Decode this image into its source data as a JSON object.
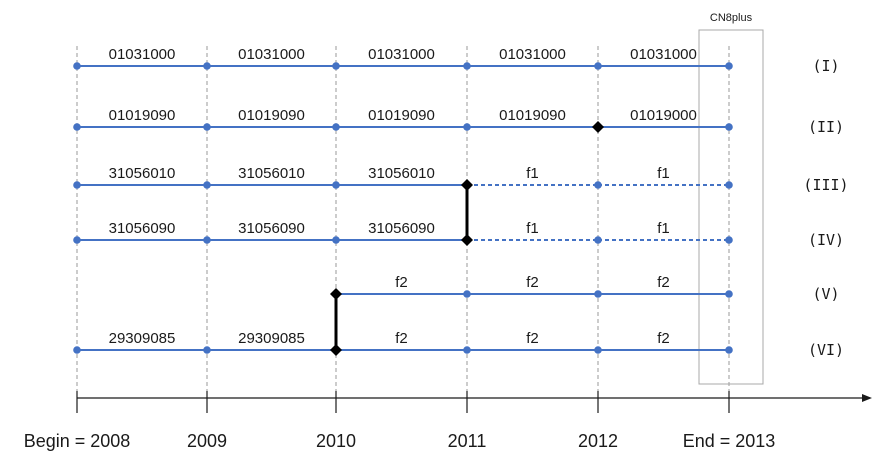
{
  "box_label": "CN8plus",
  "years": [
    {
      "label": "Begin = 2008"
    },
    {
      "label": "2009"
    },
    {
      "label": "2010"
    },
    {
      "label": "2011"
    },
    {
      "label": "2012"
    },
    {
      "label": "End = 2013"
    }
  ],
  "rows": [
    {
      "label": "(I)",
      "start": 0,
      "segments": [
        {
          "label": "01031000",
          "style": "solid"
        },
        {
          "label": "01031000",
          "style": "solid"
        },
        {
          "label": "01031000",
          "style": "solid"
        },
        {
          "label": "01031000",
          "style": "solid"
        },
        {
          "label": "01031000",
          "style": "solid"
        }
      ],
      "diamonds": []
    },
    {
      "label": "(II)",
      "start": 0,
      "segments": [
        {
          "label": "01019090",
          "style": "solid"
        },
        {
          "label": "01019090",
          "style": "solid"
        },
        {
          "label": "01019090",
          "style": "solid"
        },
        {
          "label": "01019090",
          "style": "solid"
        },
        {
          "label": "01019000",
          "style": "solid"
        }
      ],
      "diamonds": [
        4
      ]
    },
    {
      "label": "(III)",
      "start": 0,
      "segments": [
        {
          "label": "31056010",
          "style": "solid"
        },
        {
          "label": "31056010",
          "style": "solid"
        },
        {
          "label": "31056010",
          "style": "solid"
        },
        {
          "label": "f1",
          "style": "dashed"
        },
        {
          "label": "f1",
          "style": "dashed"
        }
      ],
      "diamonds": [
        3
      ]
    },
    {
      "label": "(IV)",
      "start": 0,
      "segments": [
        {
          "label": "31056090",
          "style": "solid"
        },
        {
          "label": "31056090",
          "style": "solid"
        },
        {
          "label": "31056090",
          "style": "solid"
        },
        {
          "label": "f1",
          "style": "dashed"
        },
        {
          "label": "f1",
          "style": "dashed"
        }
      ],
      "diamonds": [
        3
      ]
    },
    {
      "label": "(V)",
      "start": 2,
      "segments": [
        {
          "label": "f2",
          "style": "solid"
        },
        {
          "label": "f2",
          "style": "solid"
        },
        {
          "label": "f2",
          "style": "solid"
        }
      ],
      "diamonds": [
        2
      ]
    },
    {
      "label": "(VI)",
      "start": 0,
      "segments": [
        {
          "label": "29309085",
          "style": "solid"
        },
        {
          "label": "29309085",
          "style": "solid"
        },
        {
          "label": "f2",
          "style": "solid"
        },
        {
          "label": "f2",
          "style": "solid"
        },
        {
          "label": "f2",
          "style": "solid"
        }
      ],
      "diamonds": [
        2
      ]
    }
  ],
  "connectors": [
    {
      "year": 3,
      "from_row": 2,
      "to_row": 3
    },
    {
      "year": 2,
      "from_row": 4,
      "to_row": 5
    }
  ],
  "colors": {
    "line": "#4472C4",
    "dot": "#4472C4",
    "diamond": "#000000",
    "guide": "#9a9a9a",
    "axis": "#1a1a1a"
  }
}
